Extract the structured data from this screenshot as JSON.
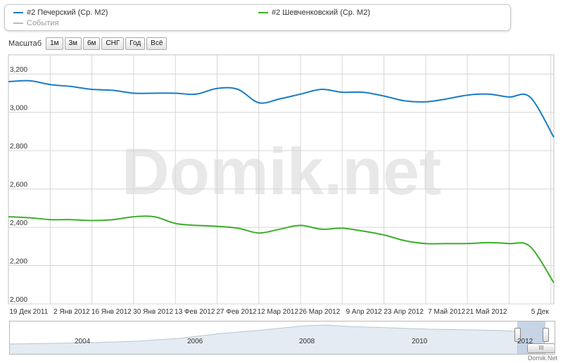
{
  "legend": {
    "series1": "#2 Печерский (Ср. М2)",
    "series2": "#2 Шевченковский (Ср. М2)",
    "events": "События"
  },
  "zoom": {
    "label": "Масштаб",
    "buttons": [
      "1м",
      "3м",
      "6м",
      "СНГ",
      "Год",
      "Всё"
    ]
  },
  "watermark": "Domik.net",
  "credit": "Domik.Net",
  "navigator": {
    "years": [
      "2004",
      "2006",
      "2008",
      "2010",
      "2012"
    ],
    "scroll_label": "III"
  },
  "chart_data": {
    "type": "line",
    "x": [
      "2011-12-05",
      "2011-12-12",
      "2011-12-19",
      "2011-12-26",
      "2012-01-02",
      "2012-01-09",
      "2012-01-16",
      "2012-01-23",
      "2012-01-30",
      "2012-02-06",
      "2012-02-13",
      "2012-02-20",
      "2012-02-27",
      "2012-03-05",
      "2012-03-12",
      "2012-03-19",
      "2012-03-26",
      "2012-04-02",
      "2012-04-09",
      "2012-04-16",
      "2012-04-23",
      "2012-04-30",
      "2012-05-07",
      "2012-05-14",
      "2012-05-21",
      "2012-05-28",
      "2012-06-05"
    ],
    "xticks": [
      {
        "label": "19 Дек 2011",
        "date": "2011-12-19"
      },
      {
        "label": "2 Янв 2012",
        "date": "2012-01-02"
      },
      {
        "label": "16 Янв 2012",
        "date": "2012-01-16"
      },
      {
        "label": "30 Янв 2012",
        "date": "2012-01-30"
      },
      {
        "label": "13 Фев 2012",
        "date": "2012-02-13"
      },
      {
        "label": "27 Фев 2012",
        "date": "2012-02-27"
      },
      {
        "label": "12 Мар 2012",
        "date": "2012-03-12"
      },
      {
        "label": "26 Мар 2012",
        "date": "2012-03-26"
      },
      {
        "label": "9 Апр 2012",
        "date": "2012-04-09"
      },
      {
        "label": "23 Апр 2012",
        "date": "2012-04-23"
      },
      {
        "label": "7 Май 2012",
        "date": "2012-05-07"
      },
      {
        "label": "21 Май 2012",
        "date": "2012-05-21"
      },
      {
        "label": "5 Дек",
        "date": "2012-06-04"
      }
    ],
    "yticks": [
      2000,
      2200,
      2400,
      2600,
      2800,
      3000,
      3200
    ],
    "ytick_labels": [
      "2,000",
      "2,200",
      "2,400",
      "2,600",
      "2,800",
      "3,000",
      "3,200"
    ],
    "ylim": [
      2000,
      3300
    ],
    "series": [
      {
        "name": "#2 Печерский (Ср. М2)",
        "color": "#1a7cc4",
        "values": [
          3160,
          3165,
          3145,
          3135,
          3120,
          3115,
          3100,
          3100,
          3100,
          3095,
          3125,
          3120,
          3050,
          3070,
          3095,
          3120,
          3105,
          3105,
          3085,
          3060,
          3055,
          3070,
          3090,
          3095,
          3080,
          3080,
          2870
        ]
      },
      {
        "name": "#2 Шевченковский (Ср. М2)",
        "color": "#3cae2a",
        "values": [
          2455,
          2450,
          2440,
          2440,
          2435,
          2440,
          2455,
          2455,
          2420,
          2410,
          2405,
          2395,
          2370,
          2390,
          2410,
          2390,
          2395,
          2380,
          2360,
          2330,
          2315,
          2315,
          2315,
          2320,
          2315,
          2300,
          2110
        ]
      }
    ],
    "grid": true,
    "legend_position": "top"
  }
}
